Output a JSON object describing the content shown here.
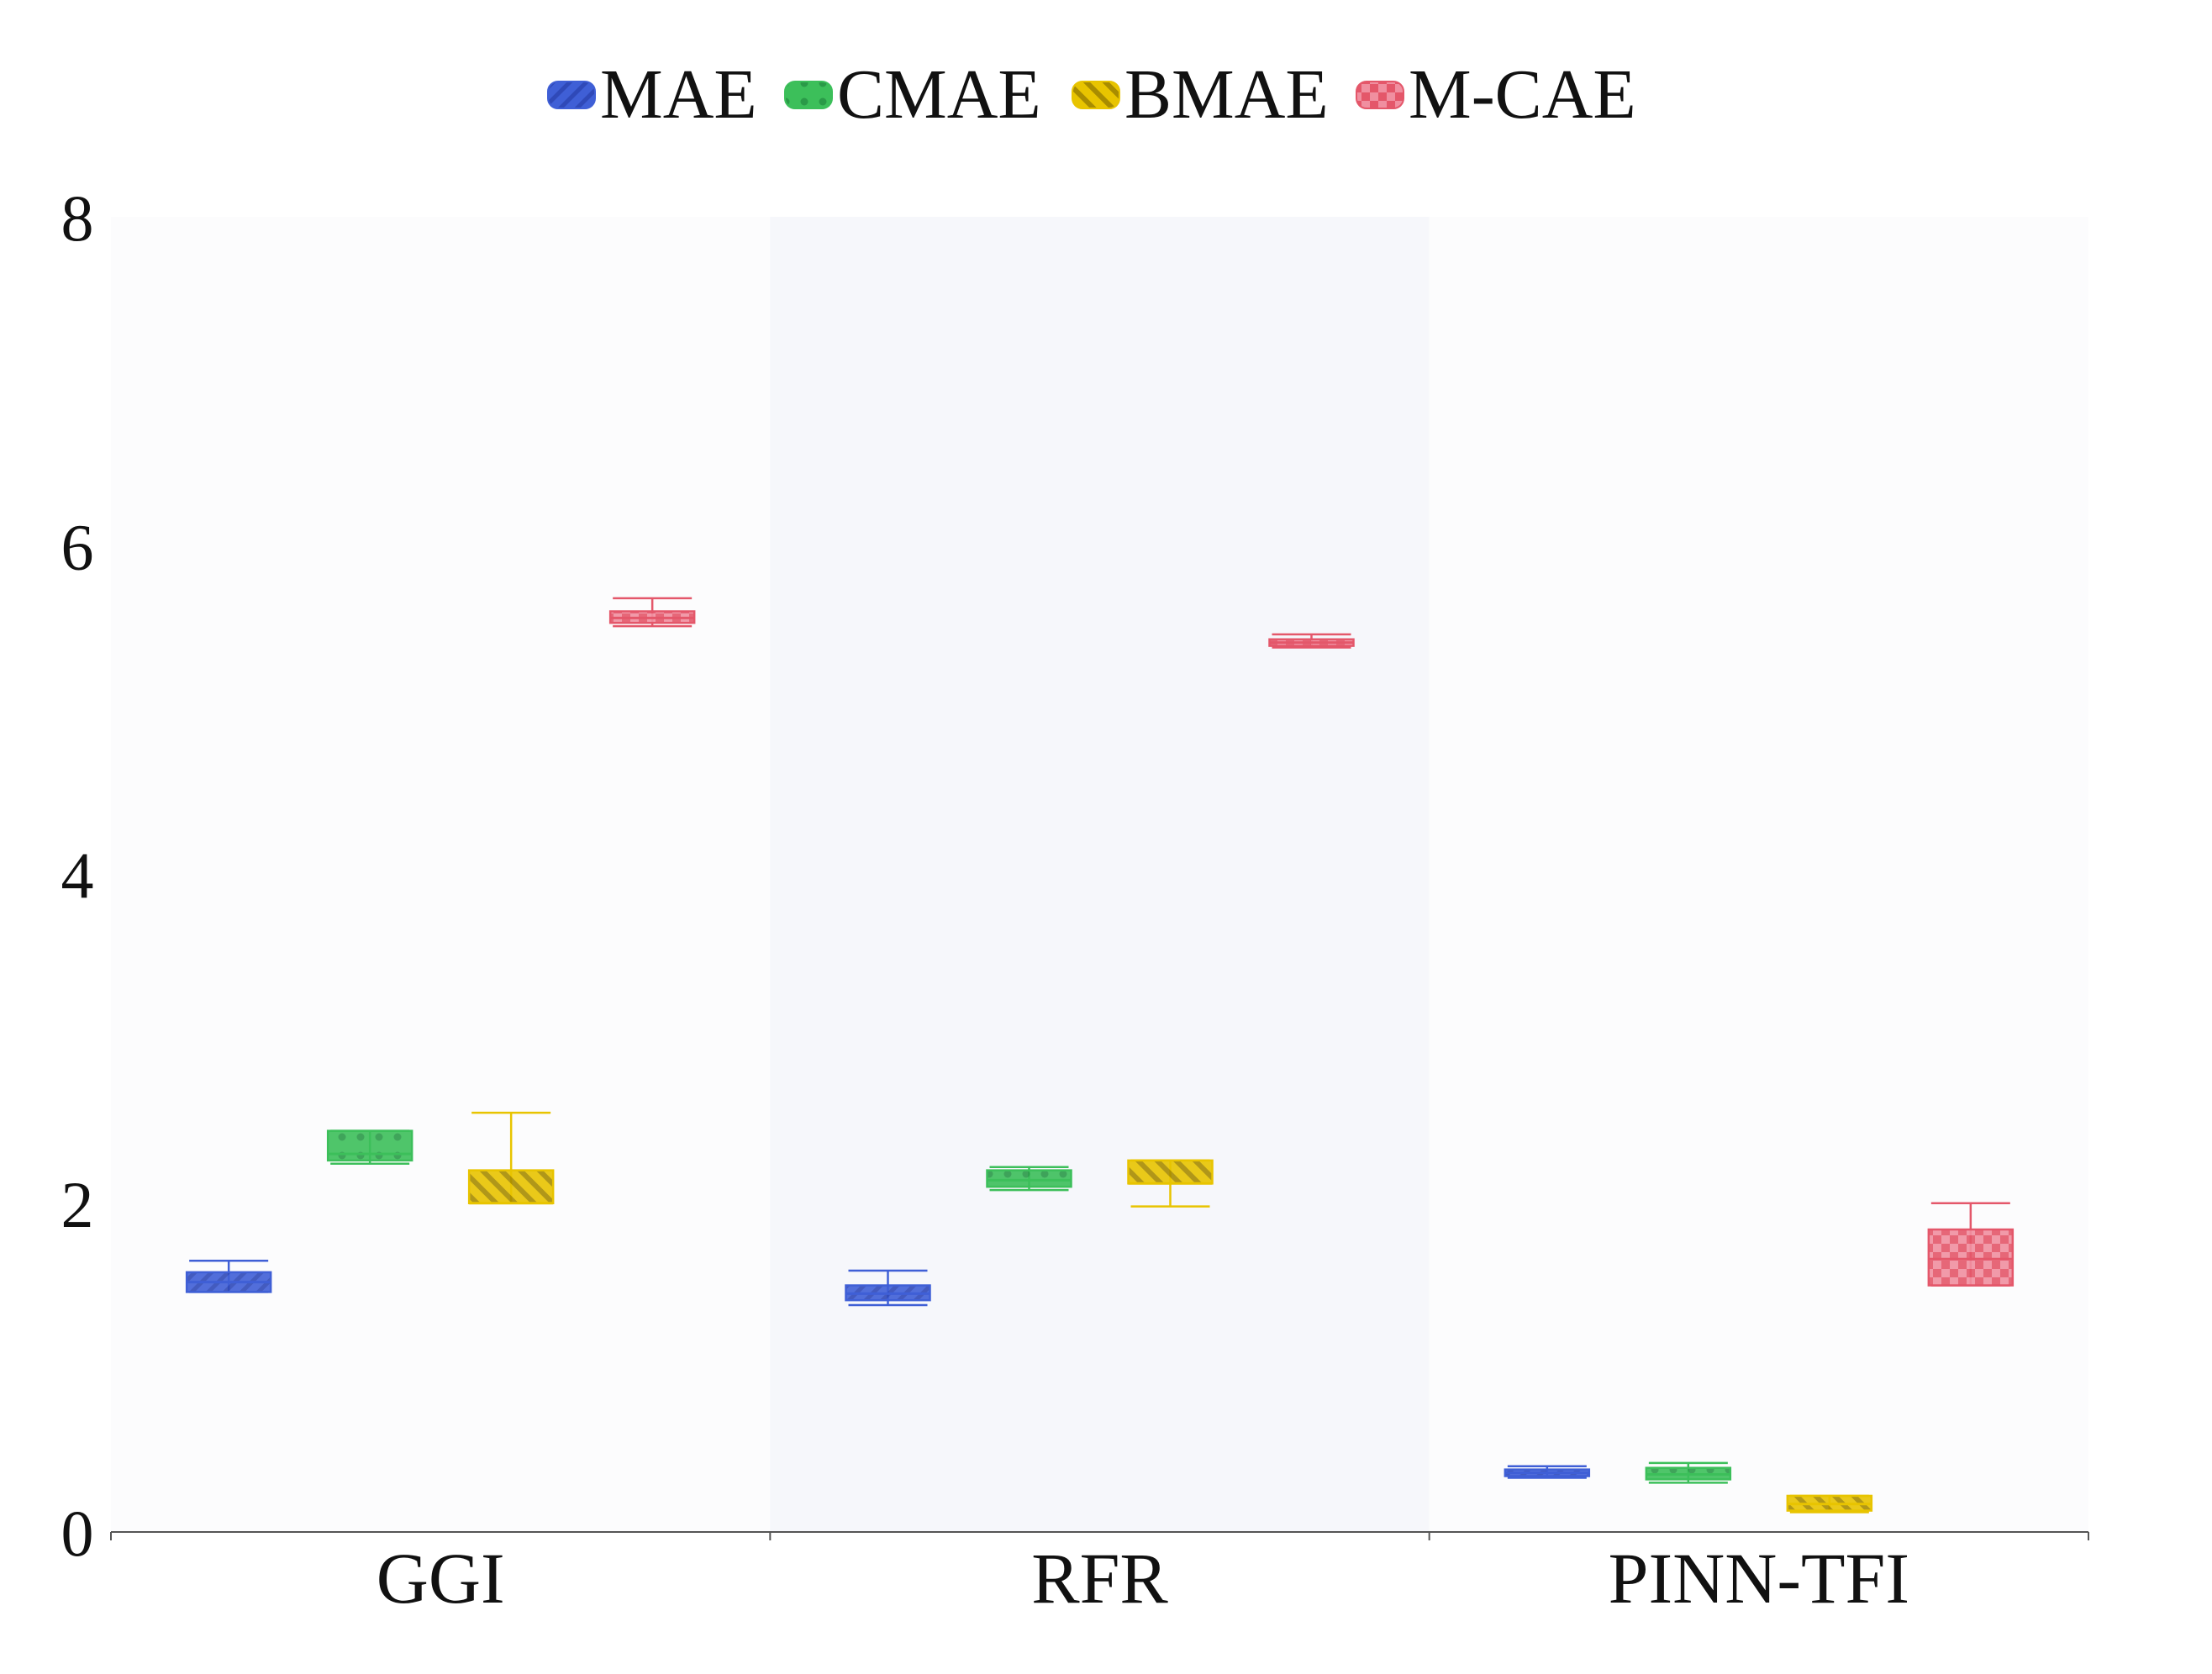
{
  "chart_data": {
    "type": "box",
    "title": "",
    "xlabel": "",
    "ylabel": "",
    "ylim": [
      0,
      8
    ],
    "yticks": [
      "0",
      "2",
      "4",
      "6",
      "8"
    ],
    "categories": [
      "GGI",
      "RFR",
      "PINN-TFI"
    ],
    "legend_position": "top-center",
    "grid": false,
    "series": [
      {
        "name": "MAE",
        "color": "#3f5fd6",
        "pattern": "diagonal-hatch-back",
        "boxes": [
          {
            "min": 1.46,
            "q1": 1.46,
            "median": 1.52,
            "q3": 1.58,
            "max": 1.65
          },
          {
            "min": 1.38,
            "q1": 1.41,
            "median": 1.45,
            "q3": 1.5,
            "max": 1.59
          },
          {
            "min": 0.33,
            "q1": 0.34,
            "median": 0.36,
            "q3": 0.38,
            "max": 0.4
          }
        ]
      },
      {
        "name": "CMAE",
        "color": "#3cbf5a",
        "pattern": "dots",
        "boxes": [
          {
            "min": 2.24,
            "q1": 2.26,
            "median": 2.3,
            "q3": 2.44,
            "max": 2.44
          },
          {
            "min": 2.08,
            "q1": 2.1,
            "median": 2.14,
            "q3": 2.2,
            "max": 2.22
          },
          {
            "min": 0.3,
            "q1": 0.32,
            "median": 0.35,
            "q3": 0.39,
            "max": 0.42
          }
        ]
      },
      {
        "name": "BMAE",
        "color": "#e8c400",
        "pattern": "diagonal-hatch",
        "boxes": [
          {
            "min": 2.0,
            "q1": 2.0,
            "median": 2.0,
            "q3": 2.2,
            "max": 2.55
          },
          {
            "min": 1.98,
            "q1": 2.12,
            "median": 2.12,
            "q3": 2.26,
            "max": 2.26
          },
          {
            "min": 0.12,
            "q1": 0.13,
            "median": 0.17,
            "q3": 0.22,
            "max": 0.22
          }
        ]
      },
      {
        "name": "M-CAE",
        "color": "#e4576a",
        "pattern": "checker",
        "boxes": [
          {
            "min": 5.51,
            "q1": 5.53,
            "median": 5.56,
            "q3": 5.6,
            "max": 5.68
          },
          {
            "min": 5.38,
            "q1": 5.39,
            "median": 5.41,
            "q3": 5.43,
            "max": 5.46
          },
          {
            "min": 1.5,
            "q1": 1.5,
            "median": 1.66,
            "q3": 1.84,
            "max": 2.0
          }
        ]
      }
    ]
  }
}
